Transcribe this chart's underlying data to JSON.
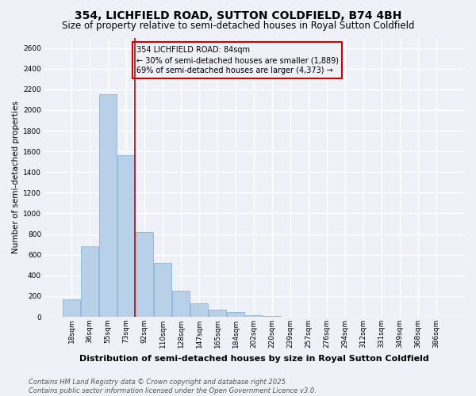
{
  "title": "354, LICHFIELD ROAD, SUTTON COLDFIELD, B74 4BH",
  "subtitle": "Size of property relative to semi-detached houses in Royal Sutton Coldfield",
  "xlabel": "Distribution of semi-detached houses by size in Royal Sutton Coldfield",
  "ylabel": "Number of semi-detached properties",
  "categories": [
    "18sqm",
    "36sqm",
    "55sqm",
    "73sqm",
    "92sqm",
    "110sqm",
    "128sqm",
    "147sqm",
    "165sqm",
    "184sqm",
    "202sqm",
    "220sqm",
    "239sqm",
    "257sqm",
    "276sqm",
    "294sqm",
    "312sqm",
    "331sqm",
    "349sqm",
    "368sqm",
    "386sqm"
  ],
  "values": [
    170,
    680,
    2150,
    1560,
    820,
    520,
    255,
    130,
    70,
    45,
    15,
    5,
    2,
    1,
    1,
    1,
    1,
    0,
    0,
    0,
    0
  ],
  "bar_color": "#b8d0e8",
  "bar_edge_color": "#7aaed6",
  "property_label": "354 LICHFIELD ROAD: 84sqm",
  "pct_smaller": "30%",
  "n_smaller": "1,889",
  "pct_larger": "69%",
  "n_larger": "4,373",
  "annotation_box_color": "#cc0000",
  "vline_color": "#cc0000",
  "vline_x": 3.47,
  "ylim": [
    0,
    2700
  ],
  "yticks": [
    0,
    200,
    400,
    600,
    800,
    1000,
    1200,
    1400,
    1600,
    1800,
    2000,
    2200,
    2400,
    2600
  ],
  "background_color": "#eef2f8",
  "grid_color": "#ffffff",
  "footer": "Contains HM Land Registry data © Crown copyright and database right 2025.\nContains public sector information licensed under the Open Government Licence v3.0.",
  "title_fontsize": 10,
  "subtitle_fontsize": 8.5,
  "xlabel_fontsize": 8,
  "ylabel_fontsize": 7.5,
  "tick_fontsize": 6.5,
  "annotation_fontsize": 7,
  "footer_fontsize": 6
}
